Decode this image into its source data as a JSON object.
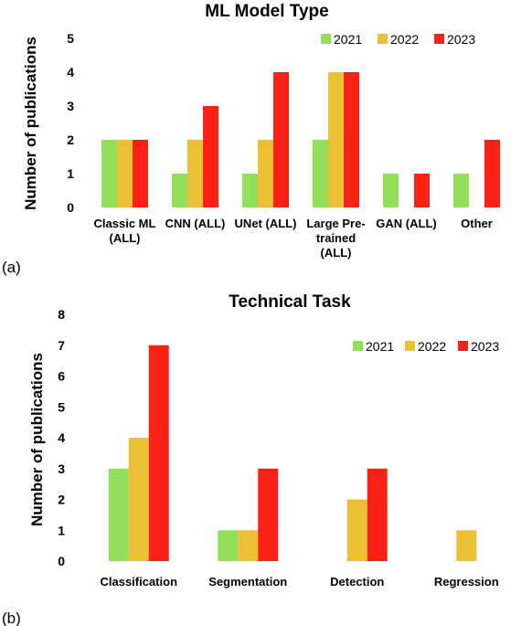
{
  "colors": {
    "2021": "#92e05a",
    "2022": "#ecc035",
    "2023": "#fa2214"
  },
  "chart_data": [
    {
      "panel_label": "(a)",
      "type": "bar",
      "title": "ML Model Type",
      "ylabel": "Number of publications",
      "xlabel": "",
      "ylim": [
        0,
        5
      ],
      "yticks": [
        "0",
        "1",
        "2",
        "3",
        "4",
        "5"
      ],
      "categories": [
        "Classic ML (ALL)",
        "CNN (ALL)",
        "UNet (ALL)",
        "Large Pre-trained (ALL)",
        "GAN (ALL)",
        "Other"
      ],
      "category_lines": [
        [
          "Classic ML",
          "(ALL)"
        ],
        [
          "CNN (ALL)"
        ],
        [
          "UNet (ALL)"
        ],
        [
          "Large Pre-",
          "trained",
          "(ALL)"
        ],
        [
          "GAN (ALL)"
        ],
        [
          "Other"
        ]
      ],
      "series": [
        {
          "name": "2021",
          "values": [
            2,
            1,
            1,
            2,
            1,
            1
          ]
        },
        {
          "name": "2022",
          "values": [
            2,
            2,
            2,
            4,
            0,
            0
          ]
        },
        {
          "name": "2023",
          "values": [
            2,
            3,
            4,
            4,
            1,
            2
          ]
        }
      ],
      "legend": "top-right",
      "grid": false
    },
    {
      "panel_label": "(b)",
      "type": "bar",
      "title": "Technical Task",
      "ylabel": "Number of publications",
      "xlabel": "",
      "ylim": [
        0,
        8
      ],
      "yticks": [
        "0",
        "1",
        "2",
        "3",
        "4",
        "5",
        "6",
        "7",
        "8"
      ],
      "categories": [
        "Classification",
        "Segmentation",
        "Detection",
        "Regression"
      ],
      "category_lines": [
        [
          "Classification"
        ],
        [
          "Segmentation"
        ],
        [
          "Detection"
        ],
        [
          "Regression"
        ]
      ],
      "series": [
        {
          "name": "2021",
          "values": [
            3,
            1,
            0,
            0
          ]
        },
        {
          "name": "2022",
          "values": [
            4,
            1,
            2,
            1
          ]
        },
        {
          "name": "2023",
          "values": [
            7,
            3,
            3,
            0
          ]
        }
      ],
      "legend": "top-right",
      "grid": false
    }
  ]
}
